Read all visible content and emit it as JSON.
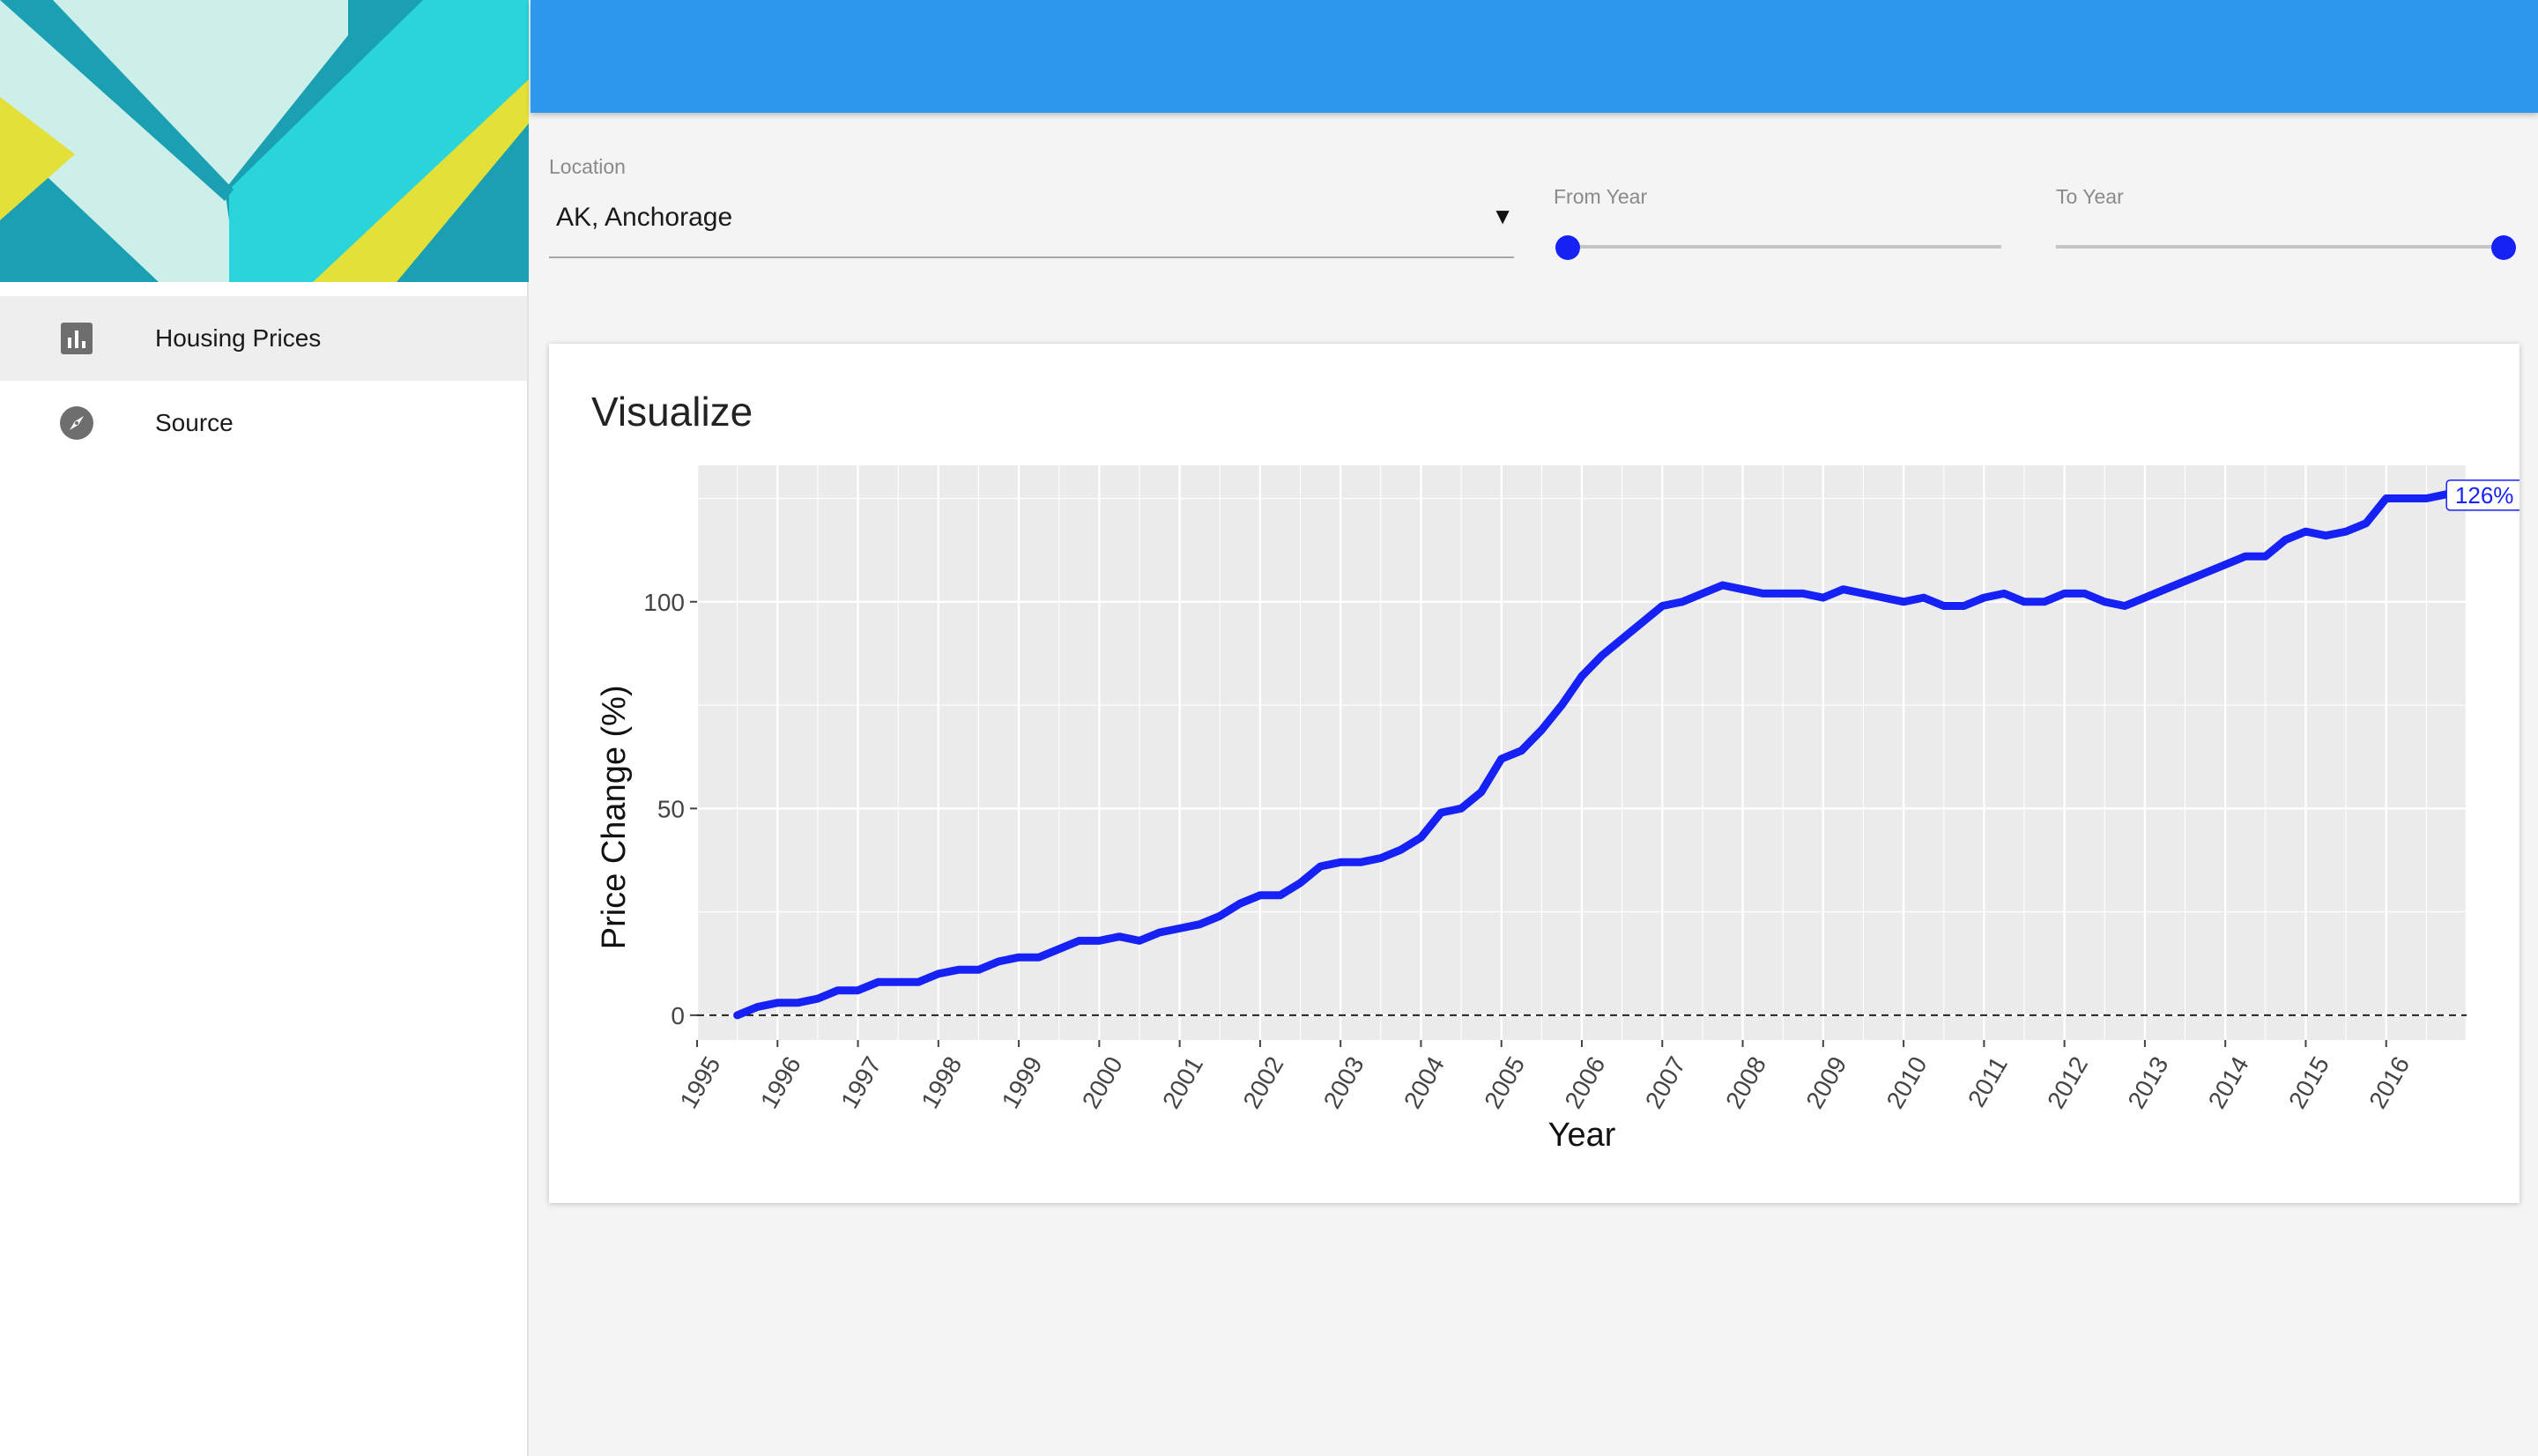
{
  "sidebar": {
    "items": [
      {
        "label": "Housing Prices",
        "icon": "bar-chart-icon",
        "active": true
      },
      {
        "label": "Source",
        "icon": "compass-icon",
        "active": false
      }
    ]
  },
  "colors": {
    "topbar": "#2c98ee",
    "accent": "#1622f5",
    "header_teal": "#1a9fb3",
    "header_cyan": "#29d4da",
    "header_mint": "#ccefe9",
    "header_yellow": "#e3e03a"
  },
  "filters": {
    "location": {
      "label": "Location",
      "value": "AK, Anchorage"
    },
    "from_year": {
      "label": "From Year",
      "value": 0
    },
    "to_year": {
      "label": "To Year",
      "value": 1
    }
  },
  "card": {
    "title": "Visualize"
  },
  "chart_data": {
    "type": "line",
    "xlabel": "Year",
    "ylabel": "Price Change (%)",
    "xlim": [
      1995,
      2017
    ],
    "ylim": [
      -6,
      133
    ],
    "x_ticks": [
      "1995",
      "1996",
      "1997",
      "1998",
      "1999",
      "2000",
      "2001",
      "2002",
      "2003",
      "2004",
      "2005",
      "2006",
      "2007",
      "2008",
      "2009",
      "2010",
      "2011",
      "2012",
      "2013",
      "2014",
      "2015",
      "2016"
    ],
    "y_ticks": [
      "0",
      "50",
      "100"
    ],
    "y_tick_values": [
      0,
      50,
      100
    ],
    "reference_line": 0,
    "end_label": "126%",
    "series": [
      {
        "x": [
          1995.5,
          1995.75,
          1996.0,
          1996.25,
          1996.5,
          1996.75,
          1997.0,
          1997.25,
          1997.5,
          1997.75,
          1998.0,
          1998.25,
          1998.5,
          1998.75,
          1999.0,
          1999.25,
          1999.5,
          1999.75,
          2000.0,
          2000.25,
          2000.5,
          2000.75,
          2001.0,
          2001.25,
          2001.5,
          2001.75,
          2002.0,
          2002.25,
          2002.5,
          2002.75,
          2003.0,
          2003.25,
          2003.5,
          2003.75,
          2004.0,
          2004.25,
          2004.5,
          2004.75,
          2005.0,
          2005.25,
          2005.5,
          2005.75,
          2006.0,
          2006.25,
          2006.5,
          2006.75,
          2007.0,
          2007.25,
          2007.5,
          2007.75,
          2008.0,
          2008.25,
          2008.5,
          2008.75,
          2009.0,
          2009.25,
          2009.5,
          2009.75,
          2010.0,
          2010.25,
          2010.5,
          2010.75,
          2011.0,
          2011.25,
          2011.5,
          2011.75,
          2012.0,
          2012.25,
          2012.5,
          2012.75,
          2013.0,
          2013.25,
          2013.5,
          2013.75,
          2014.0,
          2014.25,
          2014.5,
          2014.75,
          2015.0,
          2015.25,
          2015.5,
          2015.75,
          2016.0,
          2016.25,
          2016.5,
          2016.75
        ],
        "y": [
          0,
          2,
          3,
          3,
          4,
          6,
          6,
          8,
          8,
          8,
          10,
          11,
          11,
          13,
          14,
          14,
          16,
          18,
          18,
          19,
          18,
          20,
          21,
          22,
          24,
          27,
          29,
          29,
          32,
          36,
          37,
          37,
          38,
          40,
          43,
          49,
          50,
          54,
          62,
          64,
          69,
          75,
          82,
          87,
          91,
          95,
          99,
          100,
          102,
          104,
          103,
          102,
          102,
          102,
          101,
          103,
          102,
          101,
          100,
          101,
          99,
          99,
          101,
          102,
          100,
          100,
          102,
          102,
          100,
          99,
          101,
          103,
          105,
          107,
          109,
          111,
          111,
          115,
          117,
          116,
          117,
          119,
          125,
          125,
          125,
          126
        ]
      }
    ]
  }
}
